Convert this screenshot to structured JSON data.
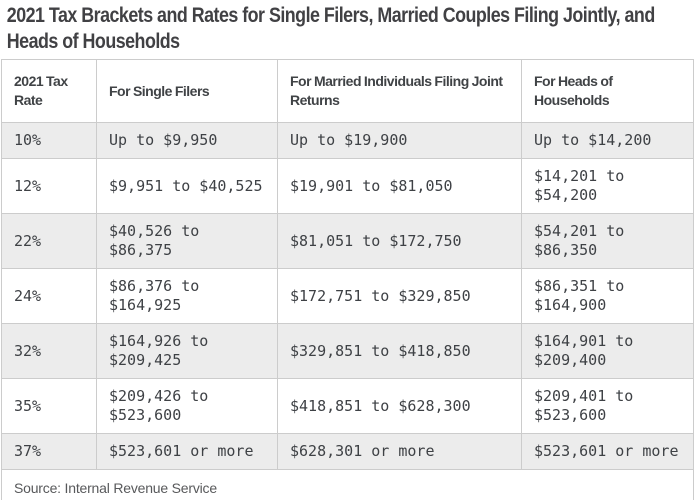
{
  "page": {
    "title": "2021 Tax Brackets and Rates for Single Filers, Married Couples Filing Jointly, and Heads of Households"
  },
  "table": {
    "headers": {
      "rate": "2021 Tax Rate",
      "single": "For Single Filers",
      "married": "For Married Individuals Filing Joint Returns",
      "head": "For Heads of Households"
    },
    "rows": [
      {
        "rate": "10%",
        "single": "Up to $9,950",
        "married": "Up to $19,900",
        "head": "Up to $14,200"
      },
      {
        "rate": "12%",
        "single": "$9,951 to $40,525",
        "married": "$19,901 to $81,050",
        "head": "$14,201 to $54,200"
      },
      {
        "rate": "22%",
        "single": "$40,526 to $86,375",
        "married": "$81,051 to $172,750",
        "head": "$54,201 to $86,350"
      },
      {
        "rate": "24%",
        "single": "$86,376 to $164,925",
        "married": "$172,751 to $329,850",
        "head": "$86,351 to $164,900"
      },
      {
        "rate": "32%",
        "single": "$164,926 to $209,425",
        "married": "$329,851 to $418,850",
        "head": "$164,901 to $209,400"
      },
      {
        "rate": "35%",
        "single": "$209,426 to $523,600",
        "married": "$418,851 to $628,300",
        "head": "$209,401 to $523,600"
      },
      {
        "rate": "37%",
        "single": "$523,601 or more",
        "married": "$628,301 or more",
        "head": "$523,601 or more"
      }
    ],
    "source": "Source: Internal Revenue Service"
  },
  "colors": {
    "title_text": "#414144",
    "header_text": "#404346",
    "body_text": "#3e4145",
    "alt_row_bg": "#ececec",
    "border": "#cccccc",
    "source_text": "#58595b"
  },
  "chart_data": {
    "type": "table",
    "title": "2021 Tax Brackets and Rates for Single Filers, Married Couples Filing Jointly, and Heads of Households",
    "columns": [
      "2021 Tax Rate",
      "For Single Filers",
      "For Married Individuals Filing Joint Returns",
      "For Heads of Households"
    ],
    "rows": [
      [
        "10%",
        "Up to $9,950",
        "Up to $19,900",
        "Up to $14,200"
      ],
      [
        "12%",
        "$9,951 to $40,525",
        "$19,901 to $81,050",
        "$14,201 to $54,200"
      ],
      [
        "22%",
        "$40,526 to $86,375",
        "$81,051 to $172,750",
        "$54,201 to $86,350"
      ],
      [
        "24%",
        "$86,376 to $164,925",
        "$172,751 to $329,850",
        "$86,351 to $164,900"
      ],
      [
        "32%",
        "$164,926 to $209,425",
        "$329,851 to $418,850",
        "$164,901 to $209,400"
      ],
      [
        "35%",
        "$209,426 to $523,600",
        "$418,851 to $628,300",
        "$209,401 to $523,600"
      ],
      [
        "37%",
        "$523,601 or more",
        "$628,301 or more",
        "$523,601 or more"
      ]
    ],
    "source": "Source: Internal Revenue Service",
    "layout": {
      "alternating_row_shading": true,
      "shaded_rows": [
        0,
        2,
        4,
        6
      ],
      "grid": true
    }
  }
}
